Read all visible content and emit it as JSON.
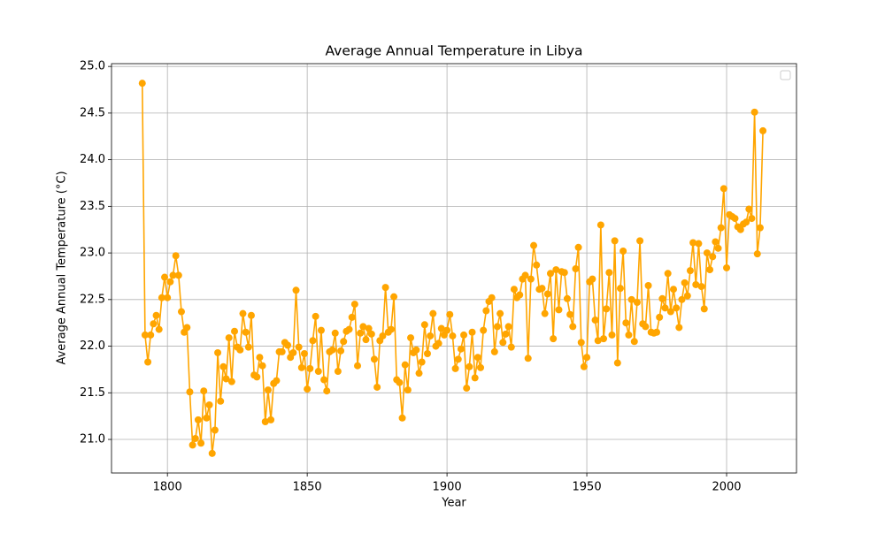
{
  "chart_data": {
    "type": "line",
    "title": "Average Annual Temperature in Libya",
    "xlabel": "Year",
    "ylabel": "Average Annual Temperature (°C)",
    "x": [
      1791,
      1792,
      1793,
      1794,
      1795,
      1796,
      1797,
      1798,
      1799,
      1800,
      1801,
      1802,
      1803,
      1804,
      1805,
      1806,
      1807,
      1808,
      1809,
      1810,
      1811,
      1812,
      1813,
      1814,
      1815,
      1816,
      1817,
      1818,
      1819,
      1820,
      1821,
      1822,
      1823,
      1824,
      1825,
      1826,
      1827,
      1828,
      1829,
      1830,
      1831,
      1832,
      1833,
      1834,
      1835,
      1836,
      1837,
      1838,
      1839,
      1840,
      1841,
      1842,
      1843,
      1844,
      1845,
      1846,
      1847,
      1848,
      1849,
      1850,
      1851,
      1852,
      1853,
      1854,
      1855,
      1856,
      1857,
      1858,
      1859,
      1860,
      1861,
      1862,
      1863,
      1864,
      1865,
      1866,
      1867,
      1868,
      1869,
      1870,
      1871,
      1872,
      1873,
      1874,
      1875,
      1876,
      1877,
      1878,
      1879,
      1880,
      1881,
      1882,
      1883,
      1884,
      1885,
      1886,
      1887,
      1888,
      1889,
      1890,
      1891,
      1892,
      1893,
      1894,
      1895,
      1896,
      1897,
      1898,
      1899,
      1900,
      1901,
      1902,
      1903,
      1904,
      1905,
      1906,
      1907,
      1908,
      1909,
      1910,
      1911,
      1912,
      1913,
      1914,
      1915,
      1916,
      1917,
      1918,
      1919,
      1920,
      1921,
      1922,
      1923,
      1924,
      1925,
      1926,
      1927,
      1928,
      1929,
      1930,
      1931,
      1932,
      1933,
      1934,
      1935,
      1936,
      1937,
      1938,
      1939,
      1940,
      1941,
      1942,
      1943,
      1944,
      1945,
      1946,
      1947,
      1948,
      1949,
      1950,
      1951,
      1952,
      1953,
      1954,
      1955,
      1956,
      1957,
      1958,
      1959,
      1960,
      1961,
      1962,
      1963,
      1964,
      1965,
      1966,
      1967,
      1968,
      1969,
      1970,
      1971,
      1972,
      1973,
      1974,
      1975,
      1976,
      1977,
      1978,
      1979,
      1980,
      1981,
      1982,
      1983,
      1984,
      1985,
      1986,
      1987,
      1988,
      1989,
      1990,
      1991,
      1992,
      1993,
      1994,
      1995,
      1996,
      1997,
      1998,
      1999,
      2000,
      2001,
      2002,
      2003,
      2004,
      2005,
      2006,
      2007,
      2008,
      2009,
      2010,
      2011,
      2012,
      2013
    ],
    "series": [
      {
        "color": "#ffa500",
        "values": [
          24.82,
          22.12,
          21.83,
          22.12,
          22.24,
          22.33,
          22.18,
          22.52,
          22.74,
          22.52,
          22.69,
          22.76,
          22.97,
          22.76,
          22.37,
          22.15,
          22.2,
          21.51,
          20.94,
          21.01,
          21.21,
          20.96,
          21.52,
          21.23,
          21.37,
          20.85,
          21.1,
          21.93,
          21.41,
          21.78,
          21.65,
          22.09,
          21.62,
          22.16,
          21.99,
          21.96,
          22.35,
          22.15,
          21.99,
          22.33,
          21.69,
          21.67,
          21.88,
          21.79,
          21.19,
          21.53,
          21.21,
          21.6,
          21.63,
          21.94,
          21.94,
          22.04,
          22.01,
          21.88,
          21.93,
          22.6,
          21.99,
          21.77,
          21.92,
          21.54,
          21.76,
          22.06,
          22.32,
          21.73,
          22.17,
          21.64,
          21.52,
          21.94,
          21.96,
          22.14,
          21.73,
          21.95,
          22.05,
          22.16,
          22.18,
          22.31,
          22.45,
          21.79,
          22.14,
          22.21,
          22.07,
          22.19,
          22.13,
          21.86,
          21.56,
          22.06,
          22.11,
          22.63,
          22.15,
          22.18,
          22.53,
          21.64,
          21.61,
          21.23,
          21.8,
          21.53,
          22.09,
          21.93,
          21.96,
          21.71,
          21.83,
          22.23,
          21.92,
          22.11,
          22.35,
          22.0,
          22.03,
          22.19,
          22.12,
          22.17,
          22.34,
          22.11,
          21.76,
          21.86,
          21.97,
          22.12,
          21.55,
          21.78,
          22.15,
          21.66,
          21.88,
          21.77,
          22.17,
          22.38,
          22.48,
          22.52,
          21.94,
          22.21,
          22.35,
          22.04,
          22.13,
          22.21,
          21.99,
          22.61,
          22.52,
          22.55,
          22.72,
          22.76,
          21.87,
          22.72,
          23.08,
          22.87,
          22.61,
          22.62,
          22.35,
          22.56,
          22.78,
          22.08,
          22.82,
          22.39,
          22.8,
          22.79,
          22.51,
          22.34,
          22.21,
          22.83,
          23.06,
          22.04,
          21.78,
          21.88,
          22.69,
          22.72,
          22.28,
          22.06,
          23.3,
          22.08,
          22.4,
          22.79,
          22.12,
          23.13,
          21.82,
          22.62,
          23.02,
          22.25,
          22.12,
          22.5,
          22.05,
          22.47,
          23.13,
          22.24,
          22.21,
          22.65,
          22.15,
          22.14,
          22.15,
          22.31,
          22.51,
          22.41,
          22.78,
          22.37,
          22.61,
          22.41,
          22.2,
          22.5,
          22.68,
          22.54,
          22.81,
          23.11,
          22.66,
          23.1,
          22.64,
          22.4,
          23.0,
          22.82,
          22.96,
          23.12,
          23.05,
          23.27,
          23.69,
          22.84,
          23.41,
          23.39,
          23.37,
          23.28,
          23.25,
          23.31,
          23.33,
          23.47,
          23.37,
          24.51,
          22.99,
          23.27,
          24.31
        ]
      }
    ],
    "xlim": [
      1780,
      2025
    ],
    "ylim": [
      20.64,
      25.03
    ],
    "xticks": [
      1800,
      1850,
      1900,
      1950,
      2000
    ],
    "yticks": [
      {
        "value": 21,
        "label": "21.0"
      },
      21.5,
      {
        "value": 22,
        "label": "22.0"
      },
      22.5,
      {
        "value": 23,
        "label": "23.0"
      },
      23.5,
      {
        "value": 24,
        "label": "24.0"
      },
      24.5,
      {
        "value": 25,
        "label": "25.0"
      }
    ],
    "grid": true,
    "legend": "upper right"
  }
}
